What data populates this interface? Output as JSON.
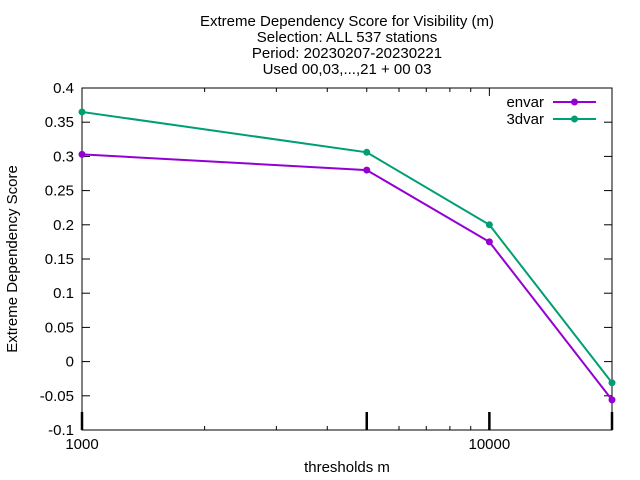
{
  "chart_data": {
    "type": "line",
    "title_lines": [
      "Extreme Dependency Score  for Visibility (m)",
      "Selection: ALL    537 stations",
      "Period: 20230207-20230221",
      "Used 00,03,...,21 + 00 03"
    ],
    "xlabel": "thresholds m",
    "ylabel": "Extreme Dependency Score",
    "x_scale": "log",
    "xlim": [
      1000,
      20000
    ],
    "ylim": [
      -0.1,
      0.4
    ],
    "x_tick_labels": [
      {
        "value": 1000,
        "label": "1000"
      },
      {
        "value": 10000,
        "label": "10000"
      }
    ],
    "y_ticks": [
      {
        "value": 0.4,
        "label": "0.4"
      },
      {
        "value": 0.35,
        "label": "0.35"
      },
      {
        "value": 0.3,
        "label": "0.3"
      },
      {
        "value": 0.25,
        "label": "0.25"
      },
      {
        "value": 0.2,
        "label": "0.2"
      },
      {
        "value": 0.15,
        "label": "0.15"
      },
      {
        "value": 0.1,
        "label": "0.1"
      },
      {
        "value": 0.05,
        "label": "0.05"
      },
      {
        "value": 0,
        "label": "0"
      },
      {
        "value": -0.05,
        "label": "-0.05"
      },
      {
        "value": -0.1,
        "label": "-0.1"
      }
    ],
    "x": [
      1000,
      5000,
      10000,
      20000
    ],
    "grid": false,
    "legend_position": "top-right",
    "series": [
      {
        "name": "envar",
        "color": "#9400d3",
        "values": [
          0.303,
          0.28,
          0.175,
          -0.056
        ]
      },
      {
        "name": "3dvar",
        "color": "#009e73",
        "values": [
          0.365,
          0.306,
          0.2,
          -0.031
        ]
      }
    ]
  }
}
